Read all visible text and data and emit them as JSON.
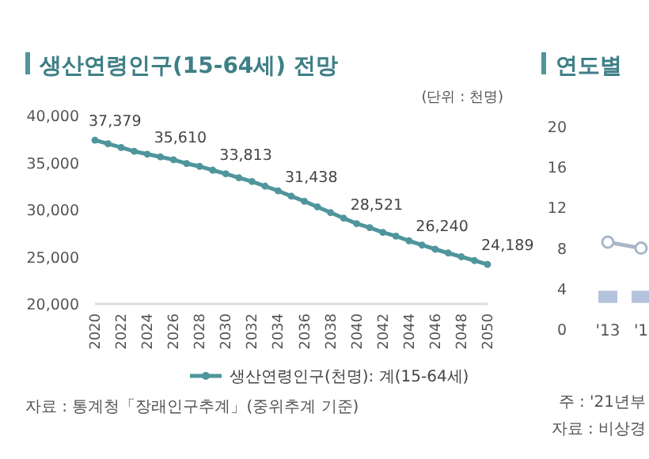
{
  "chart_data": [
    {
      "type": "line",
      "title": "생산연령인구(15-64세) 전망",
      "annotations": [
        "(단위 : 천명)",
        "자료 : 통계청「장래인구추계」(중위추계 기준)"
      ],
      "x": [
        2020,
        2021,
        2022,
        2023,
        2024,
        2025,
        2026,
        2027,
        2028,
        2029,
        2030,
        2031,
        2032,
        2033,
        2034,
        2035,
        2036,
        2037,
        2038,
        2039,
        2040,
        2041,
        2042,
        2043,
        2044,
        2045,
        2046,
        2047,
        2048,
        2049,
        2050
      ],
      "xlim": [
        2020,
        2050
      ],
      "xticks": [
        2020,
        2022,
        2024,
        2026,
        2028,
        2030,
        2032,
        2034,
        2036,
        2038,
        2040,
        2042,
        2044,
        2046,
        2048,
        2050
      ],
      "ylim": [
        20000,
        40000
      ],
      "yticks": [
        {
          "value": 20000,
          "label": "20,000"
        },
        {
          "value": 25000,
          "label": "25,000"
        },
        {
          "value": 30000,
          "label": "30,000"
        },
        {
          "value": 35000,
          "label": "35,000"
        },
        {
          "value": 40000,
          "label": "40,000"
        }
      ],
      "legend": "bottom",
      "marker": "circle",
      "line_style": "solid",
      "series": [
        {
          "name": "생산연령인구(천명): 계(15-64세)",
          "color": "#4f959c",
          "values": [
            37379,
            37000,
            36600,
            36200,
            35900,
            35610,
            35300,
            34900,
            34600,
            34200,
            33813,
            33400,
            33000,
            32500,
            32000,
            31438,
            30900,
            30300,
            29700,
            29100,
            28521,
            28100,
            27600,
            27200,
            26700,
            26240,
            25800,
            25400,
            25000,
            24600,
            24189
          ],
          "value_labels": [
            "37,379",
            null,
            null,
            null,
            null,
            "35,610",
            null,
            null,
            null,
            null,
            "33,813",
            null,
            null,
            null,
            null,
            "31,438",
            null,
            null,
            null,
            null,
            "28,521",
            null,
            null,
            null,
            null,
            "26,240",
            null,
            null,
            null,
            null,
            "24,189"
          ]
        }
      ]
    },
    {
      "type": "bar",
      "title": "연도별",
      "annotations": [
        "주 : '21년부",
        "자료 : 비상경"
      ],
      "categories": [
        "'13",
        "'1"
      ],
      "ylim": [
        0,
        20
      ],
      "yticks": [
        0,
        4,
        8,
        12,
        16,
        20
      ],
      "series": [
        {
          "color": "#b3c3db",
          "values": [
            1.2,
            1.2
          ],
          "base": [
            2.6,
            2.6
          ]
        },
        {
          "type": "line",
          "color": "#a9b7c9",
          "values": [
            8.6,
            8
          ],
          "marker": "circle"
        }
      ]
    }
  ]
}
